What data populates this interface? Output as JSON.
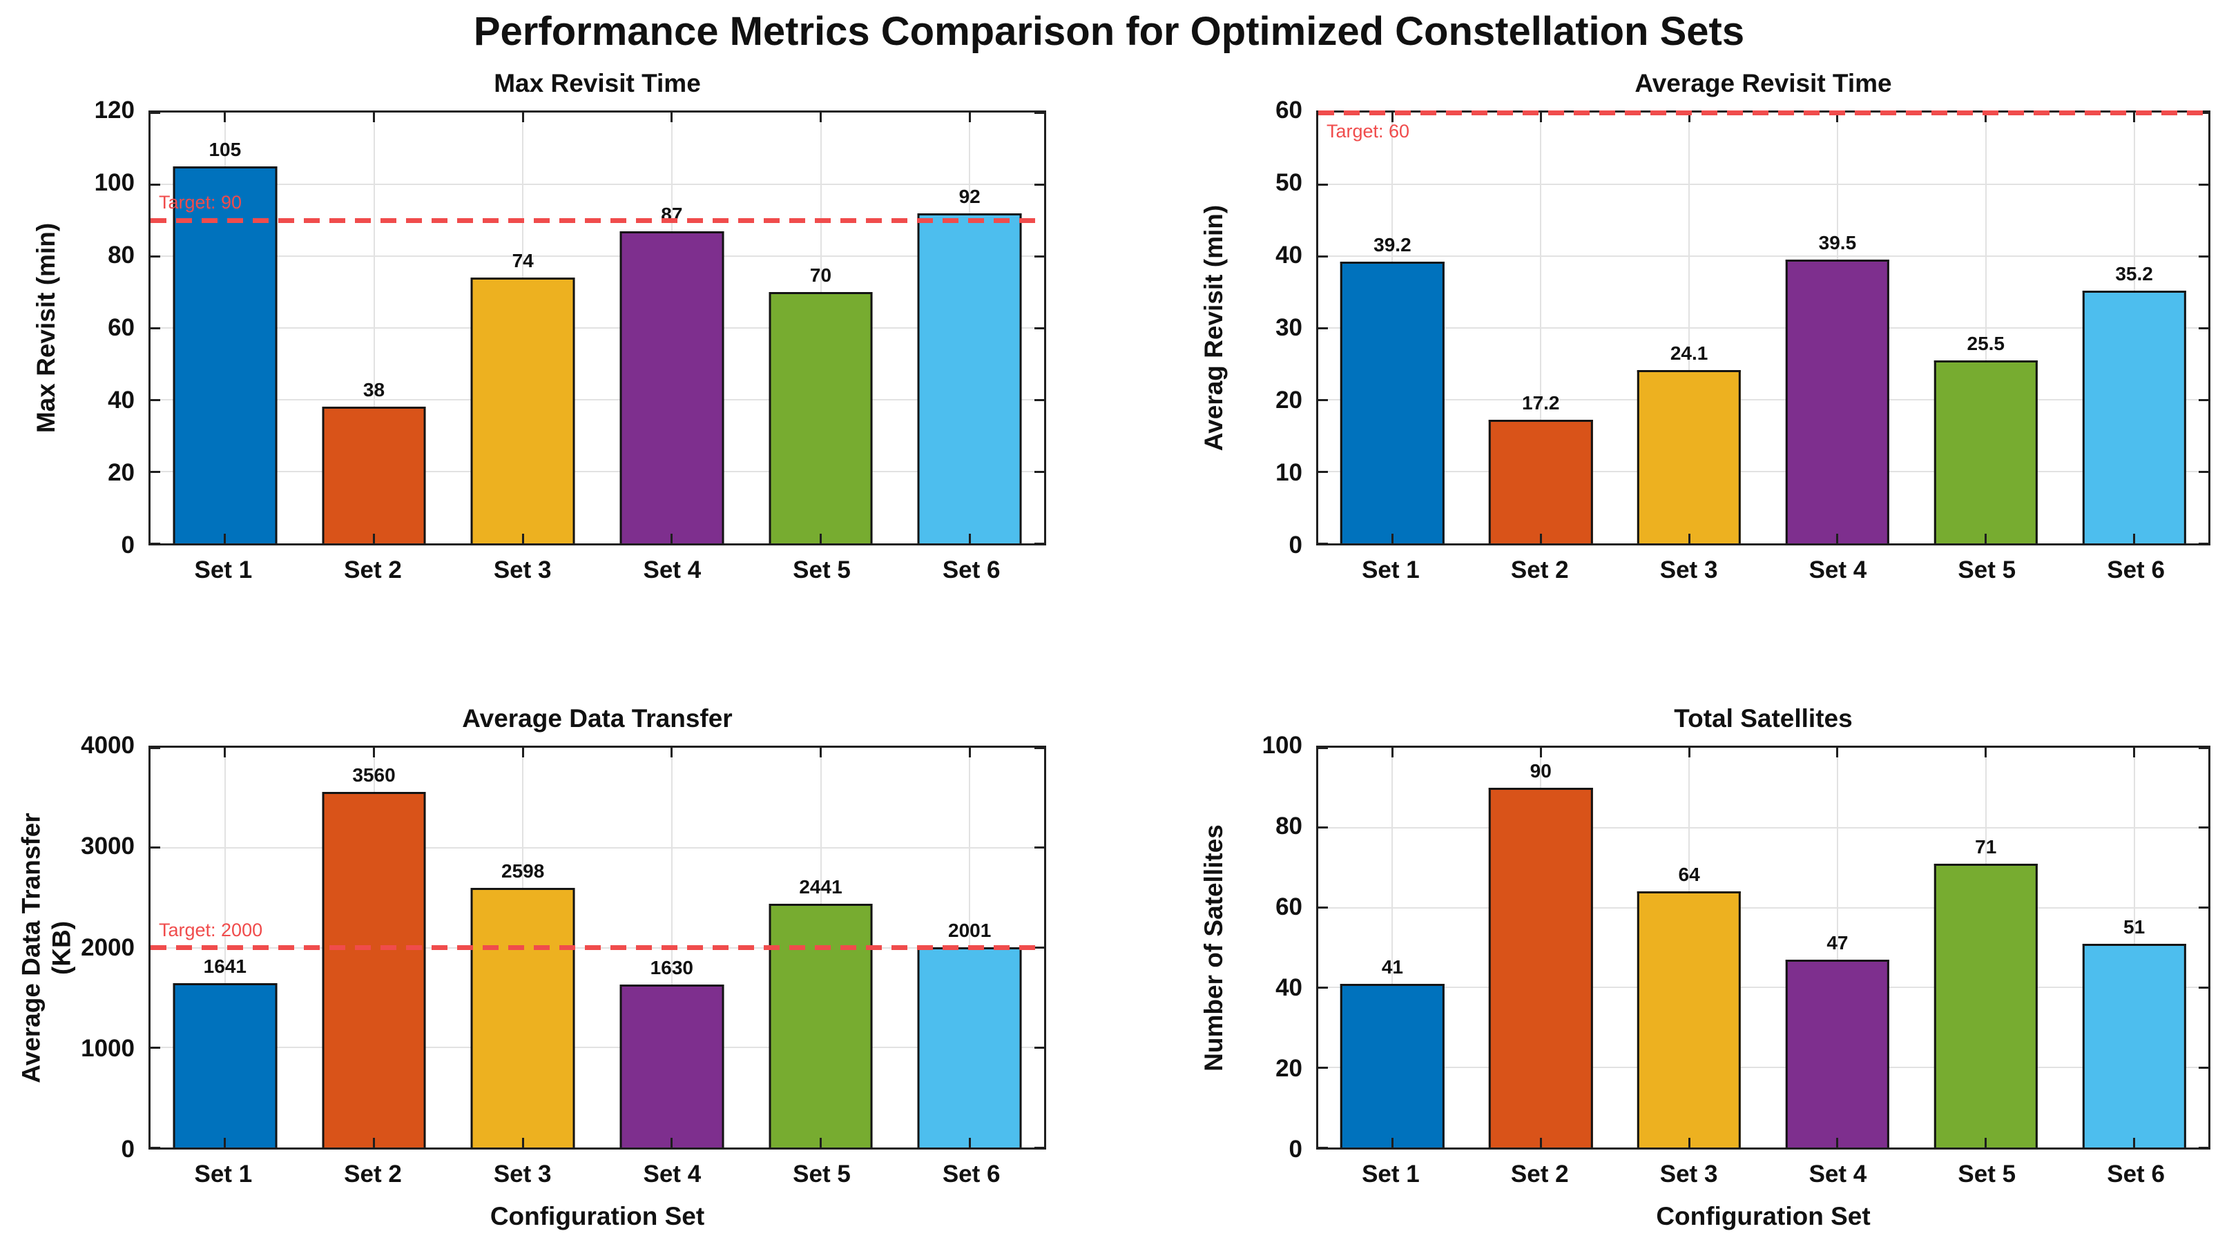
{
  "page": {
    "title": "Performance Metrics Comparison for Optimized Constellation Sets"
  },
  "style": {
    "bar_colors": [
      "#0072BD",
      "#D95319",
      "#EDB120",
      "#7E2F8E",
      "#77AC30",
      "#4DBEEE"
    ],
    "bar_edge_color": "#141414",
    "grid_color": "#E2E2E2",
    "target_color": "#F04C4C"
  },
  "chart_data": [
    {
      "id": "max-revisit-time",
      "type": "bar",
      "title": "Max Revisit Time",
      "ylabel": "Max Revisit (min)",
      "xlabel": "",
      "categories": [
        "Set 1",
        "Set 2",
        "Set 3",
        "Set 4",
        "Set 5",
        "Set 6"
      ],
      "values": [
        105,
        38,
        74,
        87,
        70,
        92
      ],
      "value_labels": [
        "105",
        "38",
        "74",
        "87",
        "70",
        "92"
      ],
      "ylim": [
        0,
        120
      ],
      "yticks": [
        0,
        20,
        40,
        60,
        80,
        100,
        120
      ],
      "target": 90,
      "target_label": "Target: 90",
      "grid": true,
      "legend": "none"
    },
    {
      "id": "average-revisit-time",
      "type": "bar",
      "title": "Average Revisit Time",
      "ylabel": "Averag Revisit (min)",
      "xlabel": "",
      "categories": [
        "Set 1",
        "Set 2",
        "Set 3",
        "Set 4",
        "Set 5",
        "Set 6"
      ],
      "values": [
        39.2,
        17.2,
        24.1,
        39.5,
        25.5,
        35.2
      ],
      "value_labels": [
        "39.2",
        "17.2",
        "24.1",
        "39.5",
        "25.5",
        "35.2"
      ],
      "ylim": [
        0,
        60
      ],
      "yticks": [
        0,
        10,
        20,
        30,
        40,
        50,
        60
      ],
      "target": 60,
      "target_label": "Target: 60",
      "grid": true,
      "legend": "none"
    },
    {
      "id": "average-data-transfer",
      "type": "bar",
      "title": "Average Data Transfer",
      "ylabel": "Average Data Transfer",
      "ylabel2": "(KB)",
      "xlabel": "Configuration Set",
      "categories": [
        "Set 1",
        "Set 2",
        "Set 3",
        "Set 4",
        "Set 5",
        "Set 6"
      ],
      "values": [
        1641,
        3560,
        2598,
        1630,
        2441,
        2001
      ],
      "value_labels": [
        "1641",
        "3560",
        "2598",
        "1630",
        "2441",
        "2001"
      ],
      "ylim": [
        0,
        4000
      ],
      "yticks": [
        0,
        1000,
        2000,
        3000,
        4000
      ],
      "target": 2000,
      "target_label": "Target: 2000",
      "grid": true,
      "legend": "none"
    },
    {
      "id": "total-satellites",
      "type": "bar",
      "title": "Total Satellites",
      "ylabel": "Number of Satellites",
      "xlabel": "Configuration Set",
      "categories": [
        "Set 1",
        "Set 2",
        "Set 3",
        "Set 4",
        "Set 5",
        "Set 6"
      ],
      "values": [
        41,
        90,
        64,
        47,
        71,
        51
      ],
      "value_labels": [
        "41",
        "90",
        "64",
        "47",
        "71",
        "51"
      ],
      "ylim": [
        0,
        100
      ],
      "yticks": [
        0,
        20,
        40,
        60,
        80,
        100
      ],
      "target": null,
      "target_label": "",
      "grid": true,
      "legend": "none"
    }
  ]
}
